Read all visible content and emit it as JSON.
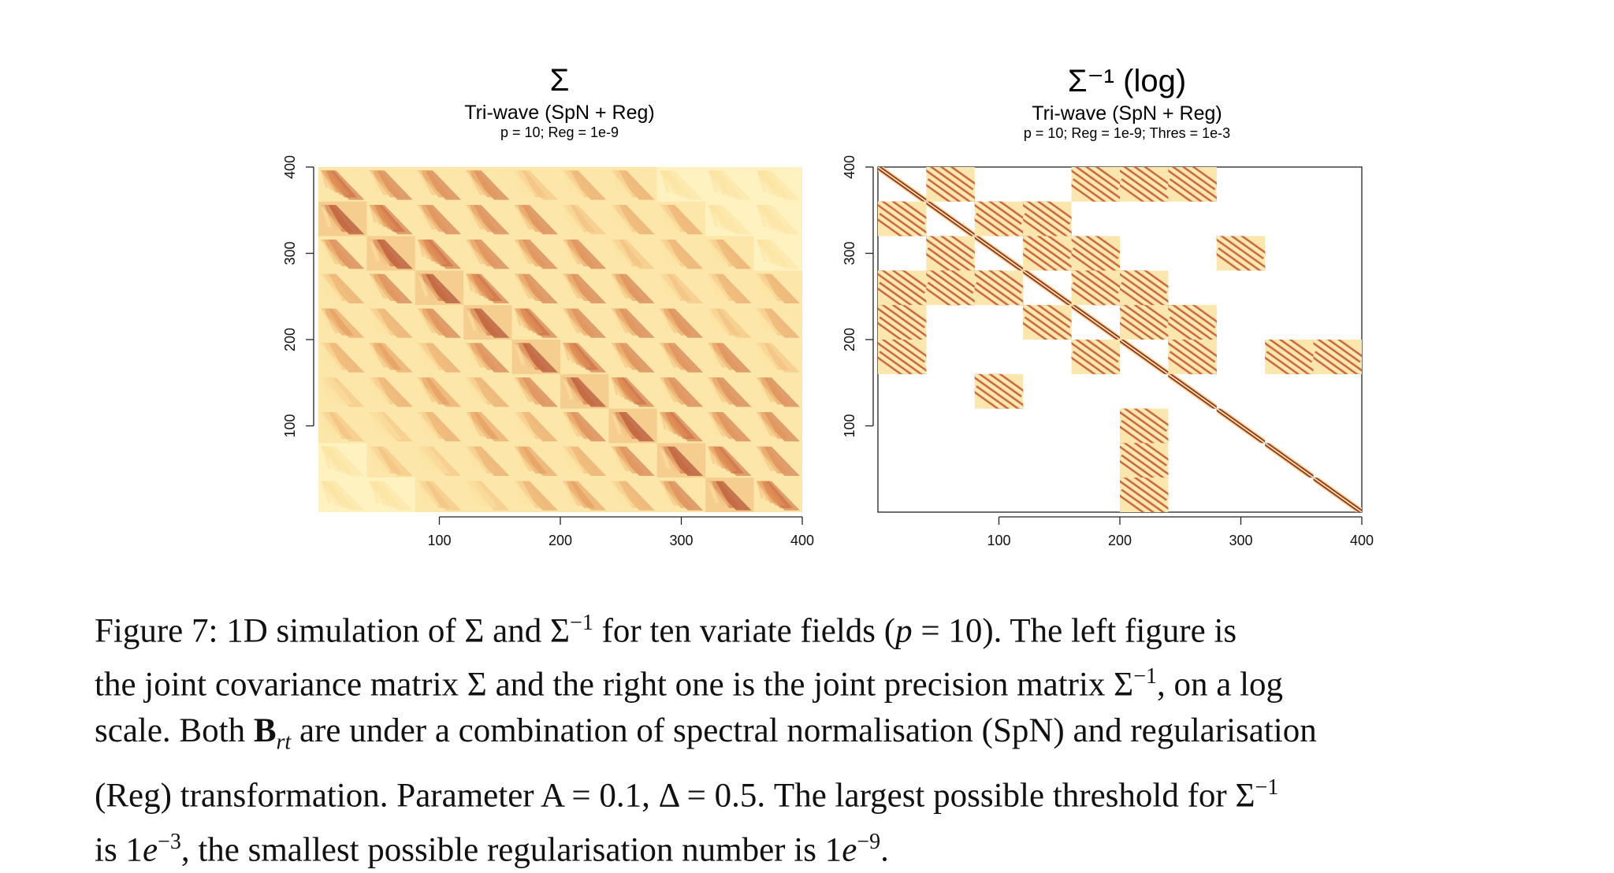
{
  "figure": {
    "panels": [
      {
        "title": "Σ",
        "subtitle": "Tri-wave (SpN + Reg)",
        "params": "p = 10; Reg = 1e-9"
      },
      {
        "title": "Σ⁻¹ (log)",
        "subtitle": "Tri-wave (SpN + Reg)",
        "params": "p = 10; Reg = 1e-9; Thres = 1e-3"
      }
    ]
  },
  "chart_data": [
    {
      "type": "heatmap",
      "title": "Σ",
      "subtitle": "Tri-wave (SpN + Reg)",
      "annotation": "p = 10; Reg = 1e-9",
      "xlim": [
        0,
        400
      ],
      "ylim": [
        0,
        400
      ],
      "x_ticks": [
        100,
        200,
        300,
        400
      ],
      "y_ticks": [
        100,
        200,
        300,
        400
      ],
      "grid": false,
      "colormap": [
        "#fdf3c0",
        "#fbe2a2",
        "#f2c07e",
        "#e3955a",
        "#c9633a",
        "#9a2e1c",
        "#6a1410"
      ],
      "blocks": 10,
      "block_size": 40
    },
    {
      "type": "heatmap",
      "title": "Σ⁻¹ (log)",
      "subtitle": "Tri-wave (SpN + Reg)",
      "annotation": "p = 10; Reg = 1e-9; Thres = 1e-3",
      "xlim": [
        0,
        400
      ],
      "ylim": [
        0,
        400
      ],
      "x_ticks": [
        100,
        200,
        300,
        400
      ],
      "y_ticks": [
        100,
        200,
        300,
        400
      ],
      "grid": false,
      "blocks": 10,
      "block_size": 40,
      "nonzero_blocks": [
        [
          1,
          1
        ],
        [
          1,
          2
        ],
        [
          1,
          5
        ],
        [
          1,
          6
        ],
        [
          1,
          7
        ],
        [
          2,
          1
        ],
        [
          2,
          2
        ],
        [
          2,
          3
        ],
        [
          2,
          4
        ],
        [
          3,
          2
        ],
        [
          3,
          3
        ],
        [
          3,
          4
        ],
        [
          3,
          5
        ],
        [
          3,
          8
        ],
        [
          4,
          1
        ],
        [
          4,
          2
        ],
        [
          4,
          3
        ],
        [
          4,
          4
        ],
        [
          4,
          5
        ],
        [
          4,
          6
        ],
        [
          5,
          1
        ],
        [
          5,
          4
        ],
        [
          5,
          5
        ],
        [
          5,
          6
        ],
        [
          5,
          7
        ],
        [
          6,
          1
        ],
        [
          6,
          5
        ],
        [
          6,
          6
        ],
        [
          6,
          7
        ],
        [
          6,
          9
        ],
        [
          6,
          10
        ],
        [
          7,
          3
        ],
        [
          7,
          7
        ],
        [
          8,
          6
        ],
        [
          8,
          8
        ],
        [
          9,
          6
        ],
        [
          9,
          9
        ],
        [
          10,
          6
        ],
        [
          10,
          10
        ]
      ],
      "nonzero_blocks_note": "[block row from top, block column from left], 1-based, 10×10 grid of 40×40 blocks"
    }
  ],
  "caption": {
    "figure_label": "Figure 7:",
    "line1_a": "1D simulation of Σ and Σ",
    "line1_b": "−1",
    "line1_c": "for ten variate fields (",
    "line1_d": "p",
    "line1_e": "= 10).  The left figure is",
    "line2_a": "the joint covariance matrix Σ and the right one is the joint precision matrix Σ",
    "line2_b": "−1",
    "line2_c": ", on a log",
    "line3_a": "scale.  Both ",
    "line3_b": "B",
    "line3_c": "rt",
    "line3_d": " are under a combination of spectral normalisation (SpN) and regularisation",
    "line4_a": "(Reg) transformation.  Parameter A = 0.1, Δ = 0.5.  The largest possible threshold for Σ",
    "line4_b": "−1",
    "line5_a": "is 1",
    "line5_b": "e",
    "line5_c": "−3",
    "line5_d": ", the smallest possible regularisation number is 1",
    "line5_e": "e",
    "line5_f": "−9",
    "line5_g": "."
  }
}
